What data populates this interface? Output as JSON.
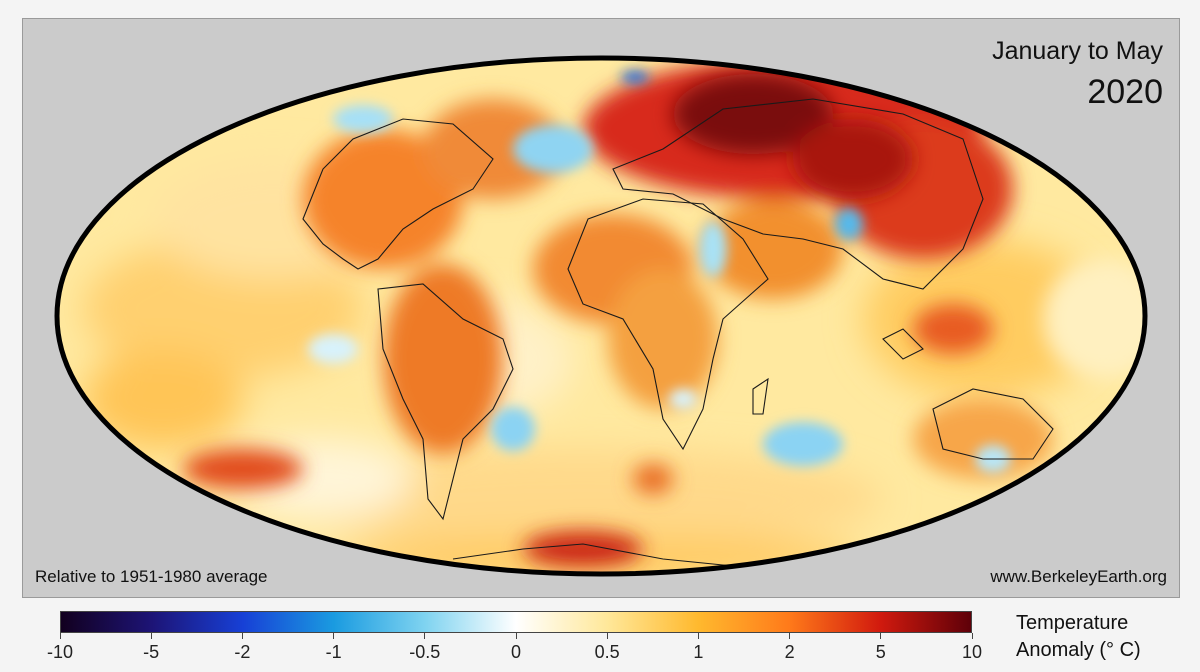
{
  "title": {
    "period": "January to May",
    "year": "2020"
  },
  "notes": {
    "baseline": "Relative to 1951-1980 average",
    "source": "www.BerkeleyEarth.org"
  },
  "legend": {
    "title_line1": "Temperature",
    "title_line2": "Anomaly (° C)",
    "ticks": [
      "-10",
      "-5",
      "-2",
      "-1",
      "-0.5",
      "0",
      "0.5",
      "1",
      "2",
      "5",
      "10"
    ],
    "colors": [
      "#12001f",
      "#1d1476",
      "#1740d6",
      "#1a9be0",
      "#7fd3f0",
      "#ffffff",
      "#ffe89a",
      "#ffb92e",
      "#ff7a1a",
      "#d11a0e",
      "#5e0009"
    ]
  },
  "map": {
    "projection": "Mollweide",
    "background_color": "#fff6c8",
    "frame_color": "#000000"
  }
}
